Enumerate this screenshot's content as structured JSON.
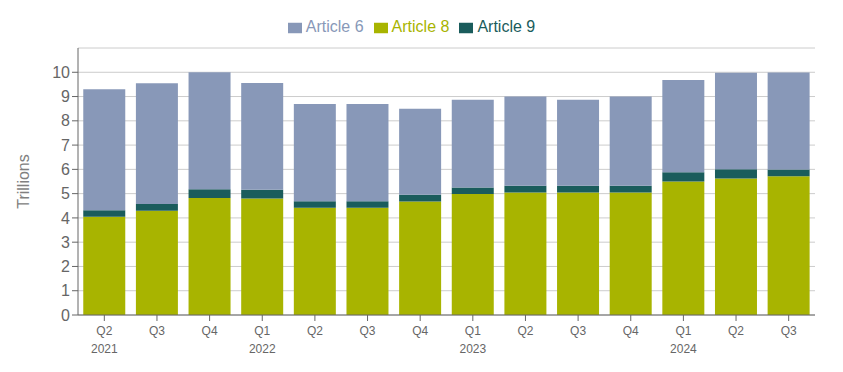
{
  "chart_data": {
    "type": "bar",
    "stacked": true,
    "ylabel": "Trillions",
    "categories": [
      "Q2",
      "Q3",
      "Q4",
      "Q1",
      "Q2",
      "Q3",
      "Q4",
      "Q1",
      "Q2",
      "Q3",
      "Q4",
      "Q1",
      "Q2",
      "Q3"
    ],
    "series": [
      {
        "name": "Article 8",
        "color": "#a8b400",
        "values": [
          4.05,
          4.3,
          4.82,
          4.8,
          4.42,
          4.42,
          4.68,
          4.98,
          5.05,
          5.05,
          5.05,
          5.5,
          5.62,
          5.72
        ]
      },
      {
        "name": "Article 9",
        "color": "#1a5c5c",
        "values": [
          0.27,
          0.27,
          0.36,
          0.36,
          0.27,
          0.27,
          0.27,
          0.27,
          0.27,
          0.27,
          0.27,
          0.38,
          0.38,
          0.27
        ]
      },
      {
        "name": "Article 6",
        "color": "#8898b8",
        "values": [
          4.98,
          4.98,
          4.82,
          4.4,
          4.0,
          4.0,
          3.55,
          3.62,
          3.68,
          3.55,
          3.68,
          3.8,
          3.98,
          4.0
        ]
      }
    ],
    "annotations": [
      {
        "text": "2021",
        "x": 0
      },
      {
        "text": "2022",
        "x": 3
      },
      {
        "text": "2023",
        "x": 7
      },
      {
        "text": "2024",
        "x": 11
      }
    ],
    "ylim": [
      0,
      11
    ],
    "yticks": [
      0,
      1,
      2,
      3,
      4,
      5,
      6,
      7,
      8,
      9,
      10
    ],
    "grid": true,
    "legend": "top"
  }
}
